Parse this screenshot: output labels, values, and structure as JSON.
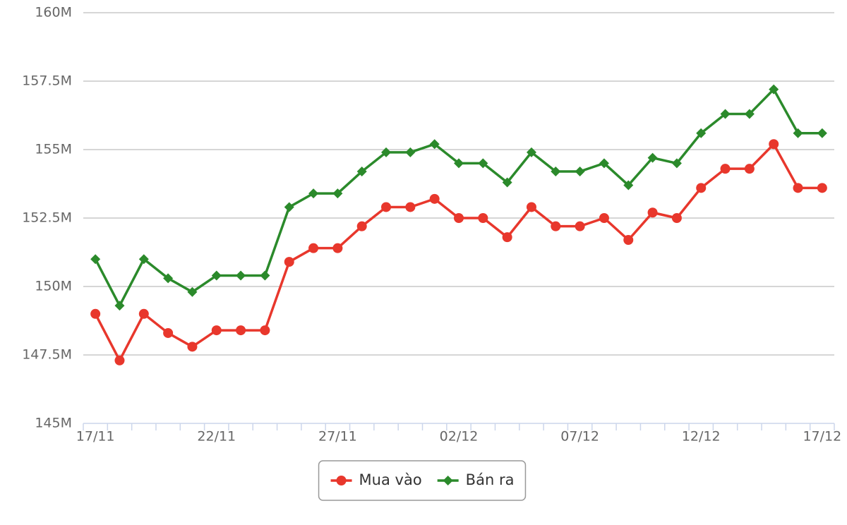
{
  "chart_data": {
    "type": "line",
    "categories": [
      "17/11",
      null,
      null,
      null,
      null,
      "22/11",
      null,
      null,
      null,
      null,
      "27/11",
      null,
      null,
      null,
      null,
      "02/12",
      null,
      null,
      null,
      null,
      "07/12",
      null,
      null,
      null,
      null,
      "12/12",
      null,
      null,
      null,
      null,
      "17/12"
    ],
    "series": [
      {
        "name": "Mua vào",
        "color": "#e8372c",
        "marker": "circle",
        "values": [
          149000000,
          147300000,
          149000000,
          148300000,
          147800000,
          148400000,
          148400000,
          148400000,
          150900000,
          151400000,
          151400000,
          152200000,
          152900000,
          152900000,
          153200000,
          152500000,
          152500000,
          151800000,
          152900000,
          152200000,
          152200000,
          152500000,
          151700000,
          152700000,
          152500000,
          153600000,
          154300000,
          154300000,
          155200000,
          153600000,
          153600000
        ]
      },
      {
        "name": "Bán ra",
        "color": "#2b8a2b",
        "marker": "diamond",
        "values": [
          151000000,
          149300000,
          151000000,
          150300000,
          149800000,
          150400000,
          150400000,
          150400000,
          152900000,
          153400000,
          153400000,
          154200000,
          154900000,
          154900000,
          155200000,
          154500000,
          154500000,
          153800000,
          154900000,
          154200000,
          154200000,
          154500000,
          153700000,
          154700000,
          154500000,
          155600000,
          156300000,
          156300000,
          157200000,
          155600000,
          155600000
        ]
      }
    ],
    "ylim": [
      145000000,
      160000000
    ],
    "yticks": [
      {
        "value": 145000000,
        "label": "145M"
      },
      {
        "value": 147500000,
        "label": "147.5M"
      },
      {
        "value": 150000000,
        "label": "150M"
      },
      {
        "value": 152500000,
        "label": "152.5M"
      },
      {
        "value": 155000000,
        "label": "155M"
      },
      {
        "value": 157500000,
        "label": "157.5M"
      },
      {
        "value": 160000000,
        "label": "160M"
      }
    ],
    "grid": true,
    "legend": "bottom"
  }
}
